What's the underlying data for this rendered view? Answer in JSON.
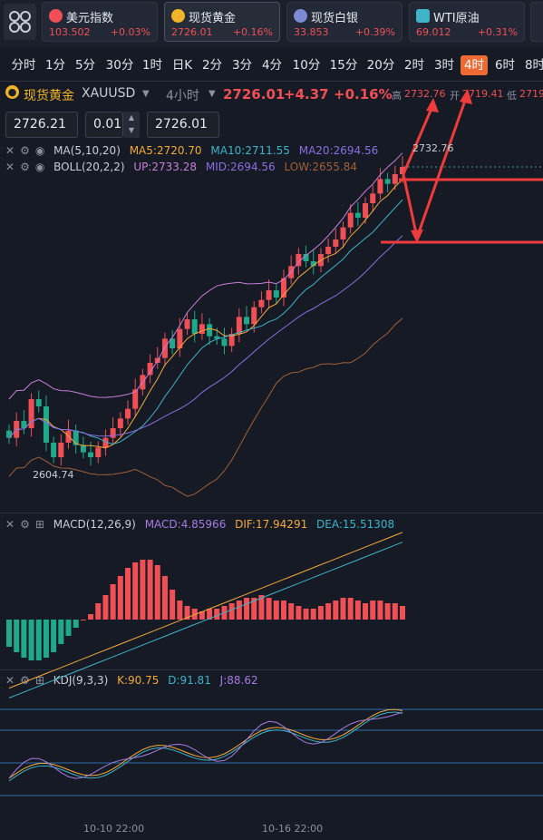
{
  "tickers": [
    {
      "name": "美元指数",
      "price": "103.502",
      "change": "+0.03%",
      "icon_color": "#ef4f55"
    },
    {
      "name": "现货黄金",
      "price": "2726.01",
      "change": "+0.16%",
      "icon_color": "#f0b429"
    },
    {
      "name": "现货白银",
      "price": "33.853",
      "change": "+0.39%",
      "icon_color": "#7d8bd4"
    },
    {
      "name": "WTI原油",
      "price": "69.012",
      "change": "+0.31%",
      "icon_color": "#3fb4c8"
    }
  ],
  "periods": [
    "分时",
    "1分",
    "5分",
    "30分",
    "1时",
    "日K",
    "2分",
    "3分",
    "4分",
    "10分",
    "15分",
    "20分",
    "2时",
    "3时",
    "4时",
    "6时",
    "8时"
  ],
  "active_period": "4时",
  "symbol": {
    "name": "现货黄金",
    "code": "XAUUSD",
    "timeframe": "4小时",
    "price": "2726.01",
    "change": "+4.37",
    "change_pct": "+0.16%",
    "high_label": "高",
    "high": "2732.76",
    "open_label": "开",
    "open": "2719.41",
    "low_label": "低",
    "low": "2719"
  },
  "order": {
    "bid": "2726.21",
    "lots": "0.01",
    "ask": "2726.01"
  },
  "legend_ma": {
    "label": "MA(5,10,20)",
    "ma5": "MA5:2720.70",
    "ma10": "MA10:2711.55",
    "ma20": "MA20:2694.56"
  },
  "legend_boll": {
    "label": "BOLL(20,2,2)",
    "up": "UP:2733.28",
    "mid": "MID:2694.56",
    "low": "LOW:2655.84"
  },
  "legend_macd": {
    "label": "MACD(12,26,9)",
    "macd": "MACD:4.85966",
    "dif": "DIF:17.94291",
    "dea": "DEA:15.51308"
  },
  "legend_kdj": {
    "label": "KDJ(9,3,3)",
    "k": "K:90.75",
    "d": "D:91.81",
    "j": "J:88.62"
  },
  "price_labels": {
    "max": "2732.76",
    "min": "2604.74"
  },
  "dates": [
    "10-10 22:00",
    "10-16 22:00"
  ],
  "colors": {
    "up": "#ef4f55",
    "down": "#1fa98a",
    "ma5": "#f2a93b",
    "ma10": "#3fb4c8",
    "ma20": "#8b6ee0",
    "boll_low": "#a0603a",
    "boll_up": "#c77fd8",
    "arrow": "#ee3b3b"
  },
  "chart_data": {
    "type": "candlestick",
    "timeframe": "4H",
    "candles_close": [
      2614,
      2621,
      2618,
      2630,
      2627,
      2612,
      2606,
      2612,
      2617,
      2611,
      2608,
      2606,
      2610,
      2614,
      2618,
      2622,
      2626,
      2634,
      2640,
      2645,
      2647,
      2655,
      2651,
      2659,
      2663,
      2657,
      2661,
      2656,
      2655,
      2652,
      2657,
      2664,
      2661,
      2668,
      2671,
      2675,
      2672,
      2680,
      2685,
      2690,
      2687,
      2685,
      2690,
      2693,
      2696,
      2701,
      2707,
      2705,
      2711,
      2715,
      2721,
      2719,
      2723,
      2726
    ],
    "macd_hist": [
      -10,
      -12,
      -14,
      -15,
      -15,
      -14,
      -12,
      -9,
      -6,
      -3,
      0,
      2,
      6,
      9,
      13,
      16,
      19,
      21,
      22,
      22,
      20,
      16,
      11,
      7,
      5,
      4,
      3,
      4,
      4,
      5,
      6,
      7,
      8,
      8,
      9,
      8,
      7,
      7,
      6,
      5,
      4,
      4,
      5,
      6,
      7,
      8,
      8,
      7,
      6,
      7,
      7,
      6,
      6,
      5
    ],
    "kdj": {
      "k": 90.75,
      "d": 91.81,
      "j": 88.62
    }
  }
}
